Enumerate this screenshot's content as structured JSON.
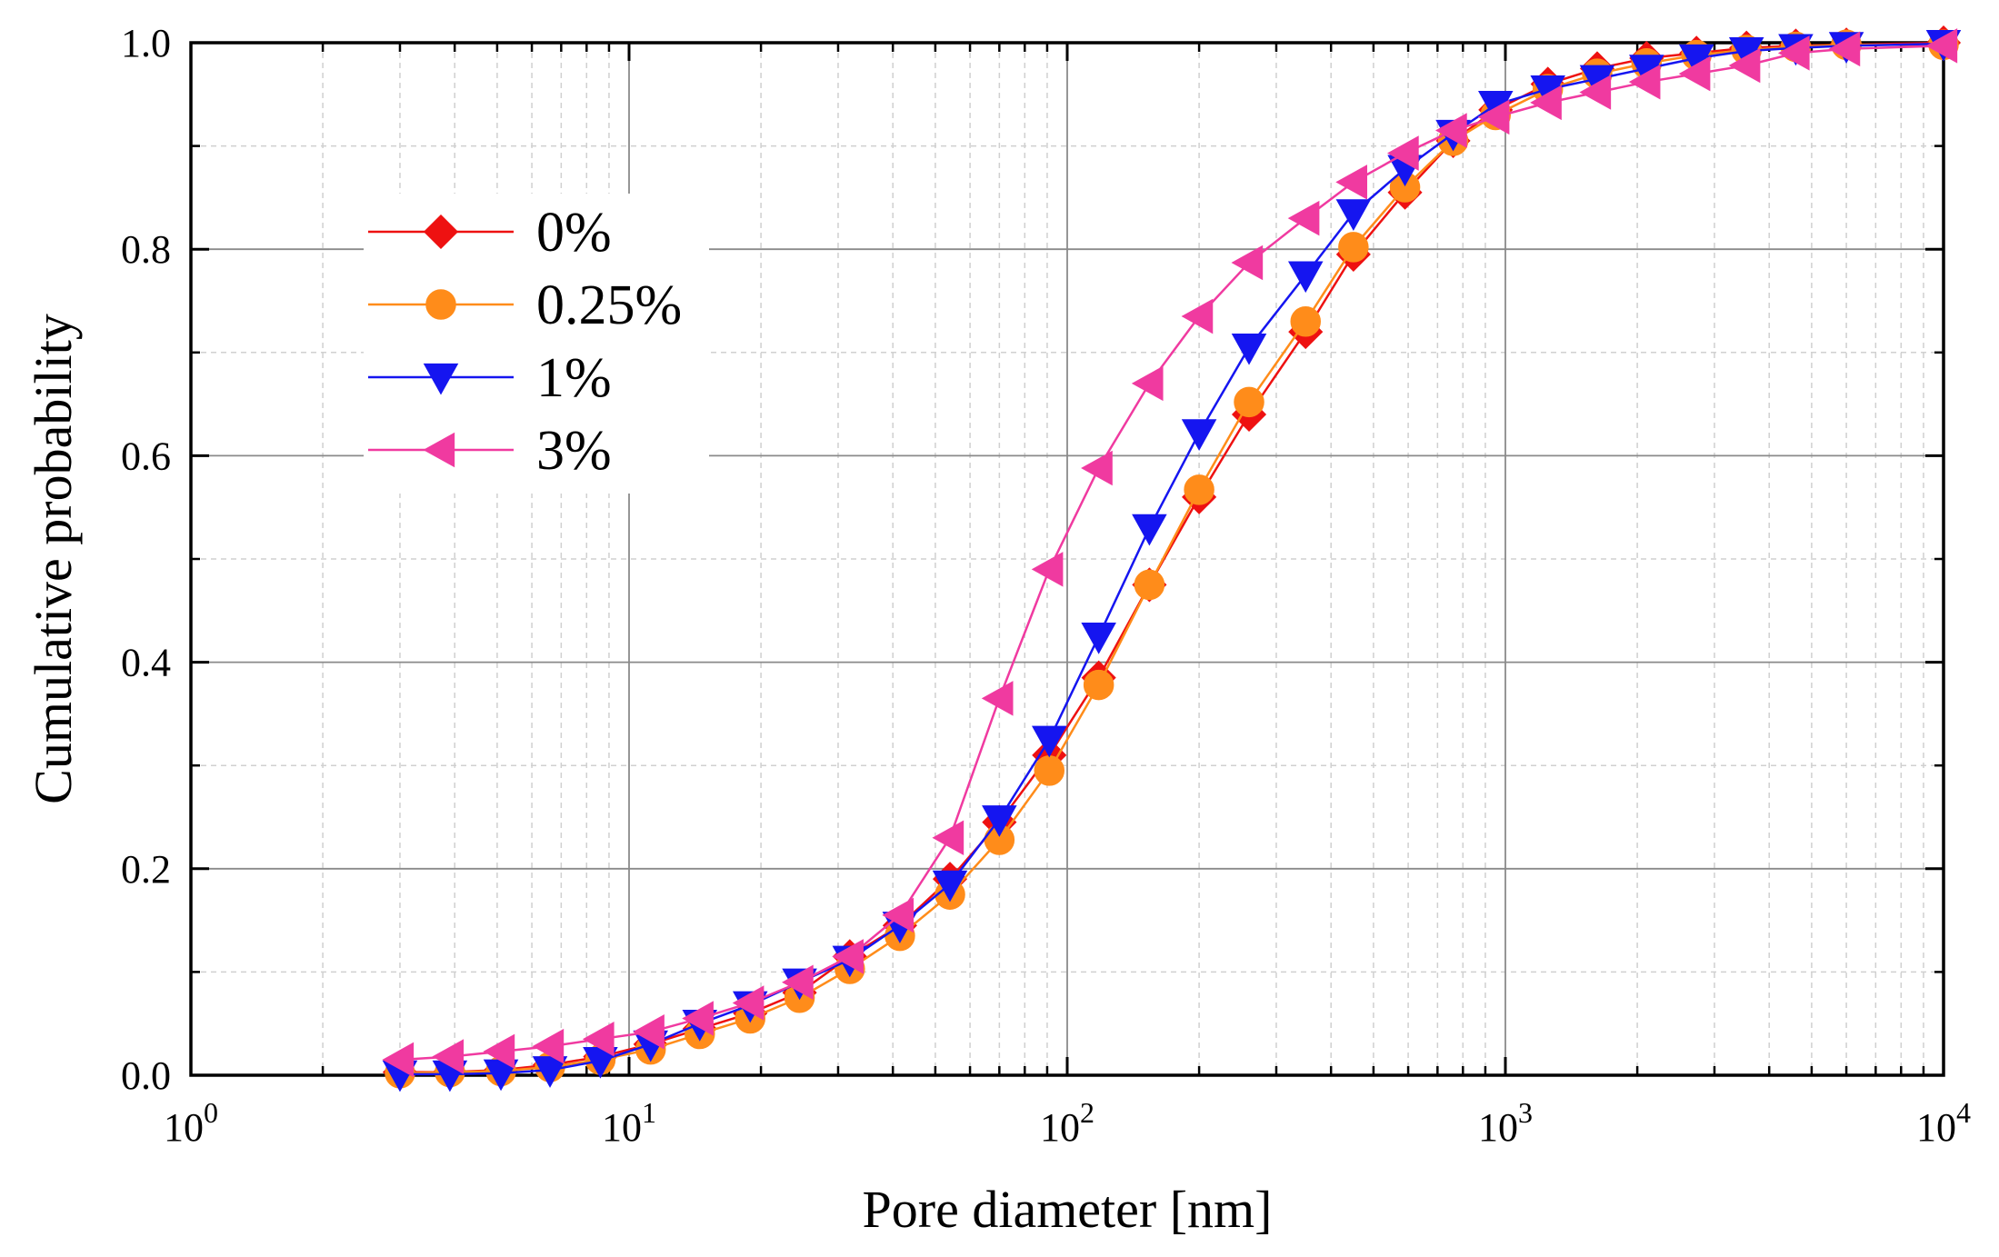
{
  "chart_data": {
    "type": "line",
    "title": "",
    "xlabel": "Pore diameter [nm]",
    "ylabel": "Cumulative probability",
    "xscale": "log",
    "xlim": [
      1,
      10000
    ],
    "ylim": [
      0,
      1.0
    ],
    "grid": true,
    "legend_position": "upper-left",
    "x_ticks": [
      {
        "value": 1,
        "base": "10",
        "exp": "0"
      },
      {
        "value": 10,
        "base": "10",
        "exp": "1"
      },
      {
        "value": 100,
        "base": "10",
        "exp": "2"
      },
      {
        "value": 1000,
        "base": "10",
        "exp": "3"
      },
      {
        "value": 10000,
        "base": "10",
        "exp": "4"
      }
    ],
    "y_ticks": [
      {
        "value": 0.0,
        "label": "0.0"
      },
      {
        "value": 0.2,
        "label": "0.2"
      },
      {
        "value": 0.4,
        "label": "0.4"
      },
      {
        "value": 0.6,
        "label": "0.6"
      },
      {
        "value": 0.8,
        "label": "0.8"
      },
      {
        "value": 1.0,
        "label": "1.0"
      }
    ],
    "series": [
      {
        "name": "0%",
        "color": "#ee1111",
        "marker": "diamond",
        "x": [
          3.0,
          3.9,
          5.1,
          6.6,
          8.6,
          11.2,
          14.5,
          18.9,
          24.5,
          31.9,
          41.5,
          54,
          70,
          91,
          118,
          154,
          200,
          260,
          350,
          450,
          590,
          760,
          950,
          1250,
          1620,
          2100,
          2730,
          3550,
          4600,
          6000,
          10000
        ],
        "y": [
          0.003,
          0.003,
          0.005,
          0.01,
          0.018,
          0.03,
          0.045,
          0.06,
          0.08,
          0.115,
          0.145,
          0.19,
          0.245,
          0.31,
          0.385,
          0.475,
          0.56,
          0.64,
          0.72,
          0.795,
          0.855,
          0.905,
          0.935,
          0.96,
          0.975,
          0.985,
          0.99,
          0.995,
          0.997,
          0.998,
          1.0
        ]
      },
      {
        "name": "0.25%",
        "color": "#ff8c1a",
        "marker": "circle",
        "x": [
          3.0,
          3.9,
          5.1,
          6.6,
          8.6,
          11.2,
          14.5,
          18.9,
          24.5,
          31.9,
          41.5,
          54,
          70,
          91,
          118,
          154,
          200,
          260,
          350,
          450,
          590,
          760,
          950,
          1250,
          1620,
          2100,
          2730,
          3550,
          4600,
          6000,
          10000
        ],
        "y": [
          0.002,
          0.003,
          0.004,
          0.008,
          0.015,
          0.025,
          0.04,
          0.055,
          0.075,
          0.103,
          0.135,
          0.175,
          0.228,
          0.295,
          0.378,
          0.475,
          0.567,
          0.652,
          0.73,
          0.802,
          0.86,
          0.905,
          0.93,
          0.955,
          0.97,
          0.98,
          0.988,
          0.993,
          0.996,
          0.998,
          0.998
        ]
      },
      {
        "name": "1%",
        "color": "#1515f0",
        "marker": "triangle-down",
        "x": [
          3.0,
          3.9,
          5.1,
          6.6,
          8.6,
          11.2,
          14.5,
          18.9,
          24.5,
          31.9,
          41.5,
          54,
          70,
          91,
          118,
          154,
          200,
          260,
          350,
          450,
          590,
          760,
          950,
          1250,
          1620,
          2100,
          2730,
          3550,
          4600,
          6000,
          10000
        ],
        "y": [
          0.001,
          0.001,
          0.002,
          0.005,
          0.014,
          0.03,
          0.05,
          0.068,
          0.09,
          0.112,
          0.145,
          0.185,
          0.248,
          0.325,
          0.425,
          0.53,
          0.622,
          0.705,
          0.775,
          0.835,
          0.878,
          0.912,
          0.94,
          0.955,
          0.965,
          0.975,
          0.985,
          0.992,
          0.995,
          0.997,
          0.999
        ]
      },
      {
        "name": "3%",
        "color": "#f03aa0",
        "marker": "triangle-left",
        "x": [
          3.0,
          3.9,
          5.1,
          6.6,
          8.6,
          11.2,
          14.5,
          18.9,
          24.5,
          31.9,
          41.5,
          54,
          70,
          91,
          118,
          154,
          200,
          260,
          350,
          450,
          590,
          760,
          950,
          1250,
          1620,
          2100,
          2730,
          3550,
          4600,
          6000,
          10000
        ],
        "y": [
          0.015,
          0.018,
          0.023,
          0.028,
          0.035,
          0.042,
          0.055,
          0.07,
          0.09,
          0.115,
          0.155,
          0.23,
          0.365,
          0.49,
          0.588,
          0.67,
          0.735,
          0.787,
          0.83,
          0.865,
          0.893,
          0.915,
          0.928,
          0.942,
          0.952,
          0.962,
          0.97,
          0.978,
          0.99,
          0.994,
          0.997
        ]
      }
    ]
  }
}
